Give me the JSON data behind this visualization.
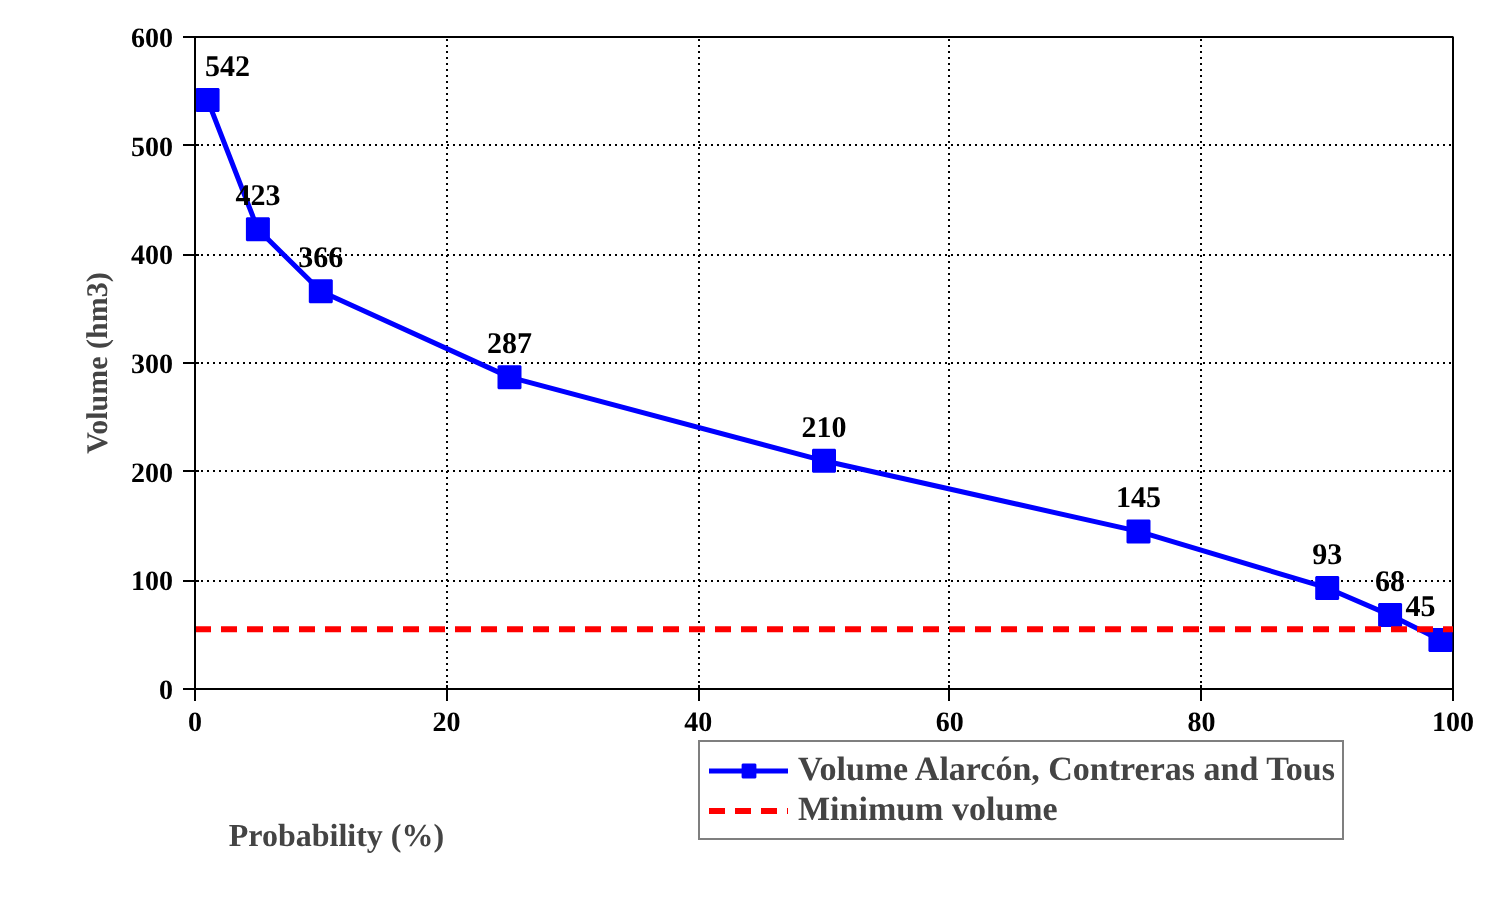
{
  "chart_data": {
    "type": "line",
    "xlabel": "Probability (%)",
    "ylabel": "Volume (hm3)",
    "series": [
      {
        "name": "Volume Alarcón, Contreras and Tous",
        "color": "#0000ff",
        "x": [
          1,
          5,
          10,
          25,
          50,
          75,
          90,
          95,
          99
        ],
        "values": [
          542,
          423,
          366,
          287,
          210,
          145,
          93,
          68,
          45
        ]
      }
    ],
    "ref_lines": [
      {
        "axis": "y",
        "value": 55,
        "label": "Minimum volume",
        "color": "#ff0000",
        "line_style": "dashed"
      }
    ],
    "xlim": [
      0,
      100
    ],
    "xticks": [
      0,
      20,
      40,
      60,
      80,
      100
    ],
    "ylim": [
      0,
      600
    ],
    "yticks": [
      0,
      100,
      200,
      300,
      400,
      500,
      600
    ],
    "grid": true,
    "legend": "bottom right",
    "marker": "square",
    "line_style": "solid",
    "data_labels": true
  }
}
